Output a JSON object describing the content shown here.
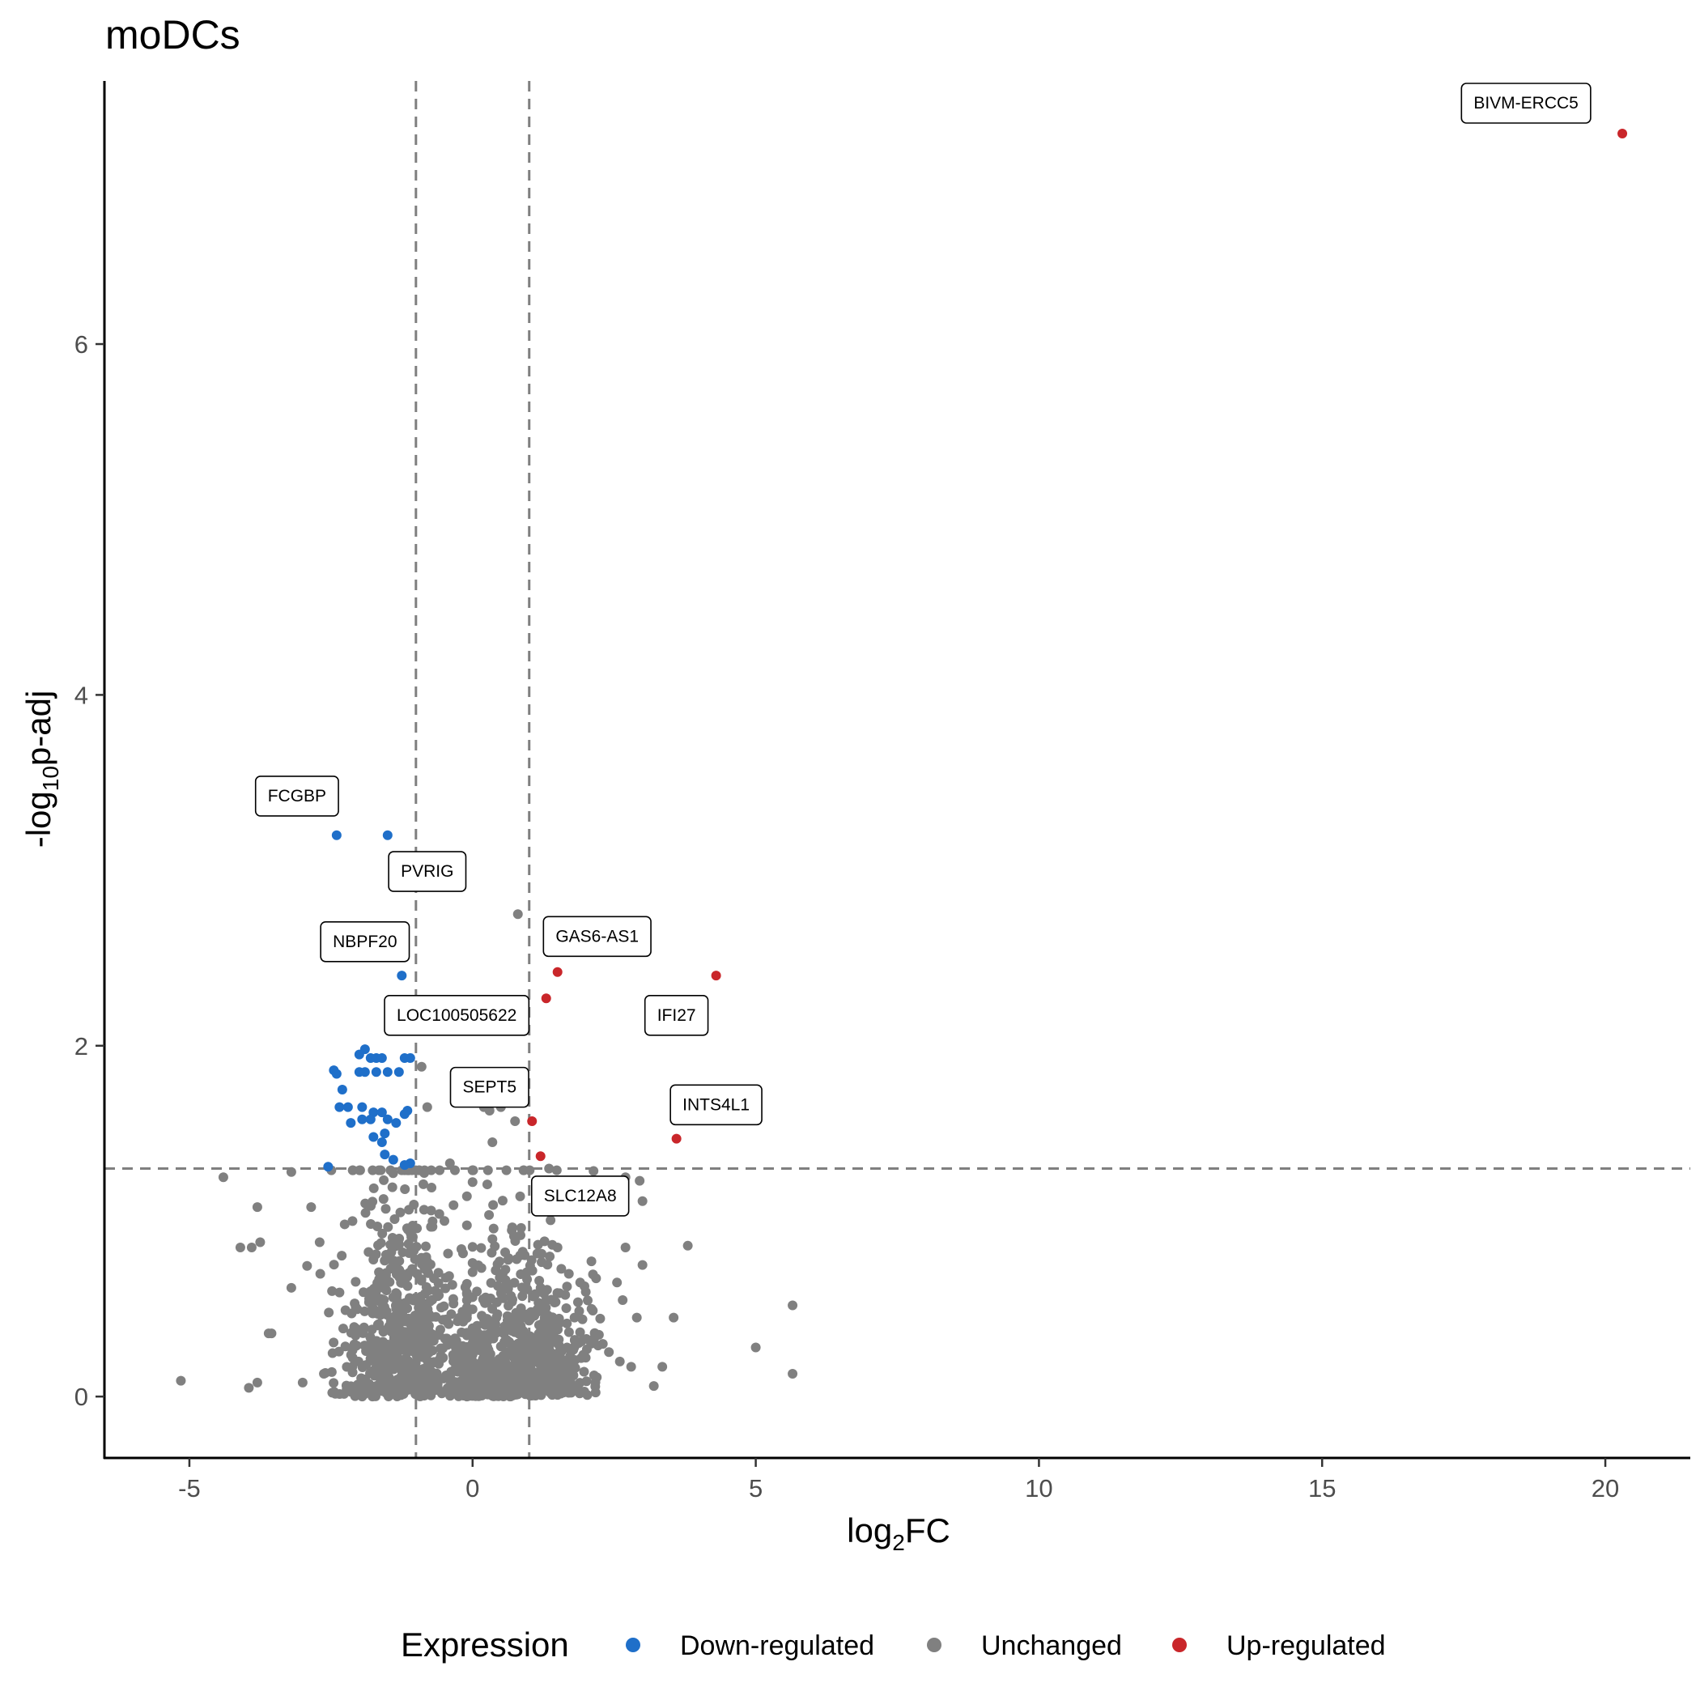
{
  "chart_data": {
    "type": "scatter",
    "title": "moDCs",
    "xlabel": {
      "base": "log",
      "sub": "2",
      "rest": "FC"
    },
    "ylabel": {
      "pre": "-log",
      "sub": "10",
      "rest": "p-adj"
    },
    "xlim": [
      -6.5,
      21.5
    ],
    "ylim": [
      -0.35,
      7.5
    ],
    "x_ticks": [
      -5,
      0,
      5,
      10,
      15,
      20
    ],
    "y_ticks": [
      0,
      2,
      4,
      6
    ],
    "x_tick_labels": [
      "-5",
      "0",
      "5",
      "10",
      "15",
      "20"
    ],
    "y_tick_labels": [
      "0",
      "2",
      "4",
      "6"
    ],
    "grid": false,
    "reference_lines": {
      "vertical": [
        -1,
        1
      ],
      "horizontal": [
        1.3
      ]
    },
    "legend": {
      "title": "Expression",
      "position": "bottom",
      "items": [
        {
          "label": "Down-regulated",
          "color": "#1f6fc9"
        },
        {
          "label": "Unchanged",
          "color": "#808080"
        },
        {
          "label": "Up-regulated",
          "color": "#c9262a"
        }
      ]
    },
    "series": [
      {
        "name": "Down-regulated",
        "color": "#1f6fc9",
        "points": [
          [
            -2.4,
            3.2
          ],
          [
            -1.5,
            3.2
          ],
          [
            -1.25,
            2.4
          ],
          [
            -1.9,
            1.98
          ],
          [
            -2.0,
            1.95
          ],
          [
            -1.8,
            1.93
          ],
          [
            -1.7,
            1.93
          ],
          [
            -1.6,
            1.93
          ],
          [
            -1.2,
            1.93
          ],
          [
            -1.1,
            1.93
          ],
          [
            -2.45,
            1.86
          ],
          [
            -2.4,
            1.84
          ],
          [
            -2.0,
            1.85
          ],
          [
            -1.9,
            1.85
          ],
          [
            -1.7,
            1.85
          ],
          [
            -1.5,
            1.85
          ],
          [
            -1.3,
            1.85
          ],
          [
            -2.3,
            1.75
          ],
          [
            -2.35,
            1.65
          ],
          [
            -2.2,
            1.65
          ],
          [
            -1.95,
            1.65
          ],
          [
            -1.75,
            1.62
          ],
          [
            -1.6,
            1.62
          ],
          [
            -1.15,
            1.63
          ],
          [
            -1.2,
            1.61
          ],
          [
            -2.15,
            1.56
          ],
          [
            -1.95,
            1.58
          ],
          [
            -1.8,
            1.58
          ],
          [
            -1.5,
            1.58
          ],
          [
            -1.35,
            1.56
          ],
          [
            -1.55,
            1.5
          ],
          [
            -1.75,
            1.48
          ],
          [
            -1.6,
            1.45
          ],
          [
            -1.55,
            1.38
          ],
          [
            -1.4,
            1.35
          ],
          [
            -1.1,
            1.33
          ],
          [
            -1.2,
            1.32
          ],
          [
            -2.55,
            1.31
          ]
        ]
      },
      {
        "name": "Unchanged",
        "color": "#808080",
        "points": [
          [
            0.8,
            2.75
          ],
          [
            -0.9,
            1.88
          ],
          [
            -0.8,
            1.65
          ],
          [
            0.2,
            1.65
          ],
          [
            0.3,
            1.63
          ],
          [
            0.5,
            1.65
          ],
          [
            0.55,
            1.75
          ],
          [
            0.75,
            1.57
          ],
          [
            0.35,
            1.45
          ],
          [
            1.35,
            1.3
          ],
          [
            2.95,
            1.23
          ],
          [
            2.7,
            1.25
          ],
          [
            -0.4,
            1.33
          ],
          [
            -4.4,
            1.25
          ],
          [
            -3.2,
            1.28
          ],
          [
            -3.8,
            1.08
          ],
          [
            -2.85,
            1.08
          ],
          [
            -3.75,
            0.88
          ],
          [
            -3.9,
            0.85
          ],
          [
            -2.7,
            0.88
          ],
          [
            -4.1,
            0.85
          ],
          [
            3.8,
            0.86
          ],
          [
            2.7,
            0.85
          ],
          [
            3.0,
            0.75
          ],
          [
            2.55,
            0.65
          ],
          [
            2.65,
            0.55
          ],
          [
            2.9,
            0.45
          ],
          [
            3.55,
            0.45
          ],
          [
            5.65,
            0.52
          ],
          [
            5.0,
            0.28
          ],
          [
            5.65,
            0.13
          ],
          [
            3.35,
            0.17
          ],
          [
            2.8,
            0.17
          ],
          [
            2.6,
            0.2
          ],
          [
            3.2,
            0.06
          ],
          [
            -5.15,
            0.09
          ],
          [
            -3.95,
            0.05
          ],
          [
            -3.8,
            0.08
          ],
          [
            -3.6,
            0.36
          ],
          [
            -3.55,
            0.36
          ],
          [
            -3.2,
            0.62
          ],
          [
            -3.0,
            0.08
          ],
          [
            1.7,
            0.7
          ],
          [
            1.9,
            0.65
          ],
          [
            1.5,
            0.85
          ],
          [
            1.3,
            0.55
          ],
          [
            2.1,
            0.5
          ],
          [
            1.8,
            0.45
          ],
          [
            2.3,
            0.3
          ]
        ],
        "cloud": {
          "count": 1500,
          "seed": 7,
          "clusters": [
            {
              "x_center": -1.2,
              "x_spread": 1.1,
              "y_scale": 0.42,
              "share": 0.45,
              "x_min": -3.0,
              "x_max": -0.1
            },
            {
              "x_center": 0.9,
              "x_spread": 1.05,
              "y_scale": 0.32,
              "share": 0.45,
              "x_min": 0.0,
              "x_max": 3.0
            },
            {
              "x_center": 0.0,
              "x_spread": 0.25,
              "y_scale": 0.08,
              "share": 0.1,
              "x_min": -0.5,
              "x_max": 0.5
            }
          ],
          "y_max": 1.29
        }
      },
      {
        "name": "Up-regulated",
        "color": "#c9262a",
        "points": [
          [
            20.3,
            7.2
          ],
          [
            1.5,
            2.42
          ],
          [
            4.3,
            2.4
          ],
          [
            1.3,
            2.27
          ],
          [
            1.05,
            1.57
          ],
          [
            3.6,
            1.47
          ],
          [
            1.2,
            1.37
          ]
        ]
      }
    ],
    "annotations": [
      {
        "label": "BIVM-ERCC5",
        "x": 18.6,
        "y": 7.38
      },
      {
        "label": "FCGBP",
        "x": -3.1,
        "y": 3.43
      },
      {
        "label": "PVRIG",
        "x": -0.8,
        "y": 3.0
      },
      {
        "label": "NBPF20",
        "x": -1.9,
        "y": 2.6
      },
      {
        "label": "GAS6-AS1",
        "x": 2.2,
        "y": 2.63
      },
      {
        "label": "LOC100505622",
        "x": -0.28,
        "y": 2.18
      },
      {
        "label": "IFI27",
        "x": 3.6,
        "y": 2.18
      },
      {
        "label": "SEPT5",
        "x": 0.3,
        "y": 1.77
      },
      {
        "label": "INTS4L1",
        "x": 4.3,
        "y": 1.67
      },
      {
        "label": "SLC12A8",
        "x": 1.9,
        "y": 1.15
      }
    ]
  }
}
